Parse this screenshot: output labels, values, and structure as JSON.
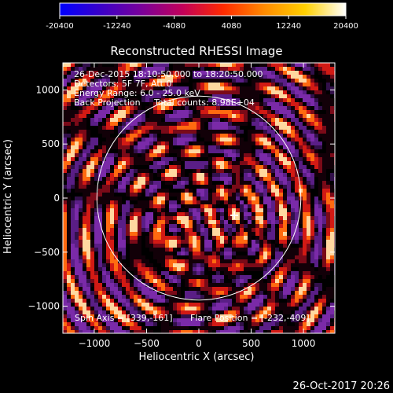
{
  "colorbar": {
    "ticks": [
      "-20400",
      "-12240",
      "-4080",
      "4080",
      "12240",
      "20400"
    ],
    "colors": [
      "#0000ff",
      "#3a00c8",
      "#7a009a",
      "#c2005a",
      "#ff2a00",
      "#ff8a00",
      "#ffd000",
      "#ffffff"
    ]
  },
  "title": "Reconstructed RHESSI Image",
  "info_lines": [
    "26-Dec-2015 18:10:50.000 to 18:20:50.000",
    "Detectors: 5F 7F, Att 0",
    "Energy Range: 6.0 - 25.0 keV",
    "Back Projection     Total counts: 8.98E+04"
  ],
  "footer_left": "Spin Axis = [339,-161]",
  "footer_right": "Flare Position = [-232,-409]",
  "timestamp": "26-Oct-2017 20:26",
  "chart_data": {
    "type": "heatmap",
    "title": "Reconstructed RHESSI Image",
    "xlabel": "Heliocentric X (arcsec)",
    "ylabel": "Heliocentric Y (arcsec)",
    "xlim": [
      -1300,
      1300
    ],
    "ylim": [
      -1250,
      1250
    ],
    "x_ticks": [
      -1000,
      -500,
      0,
      500,
      1000
    ],
    "x_tick_labels": [
      "−1000",
      "−500",
      "0",
      "500",
      "1000"
    ],
    "y_ticks": [
      -1000,
      -500,
      0,
      500,
      1000
    ],
    "y_tick_labels": [
      "−1000",
      "−500",
      "0",
      "500",
      "1000"
    ],
    "colorbar_range": [
      -20400,
      20400
    ],
    "solar_limb_radius_arcsec": 975,
    "spin_axis": [
      339,
      -161
    ],
    "flare_position": [
      -232,
      -409
    ],
    "markers": [
      {
        "symbol": "+",
        "x": 339,
        "y": -161
      }
    ]
  }
}
